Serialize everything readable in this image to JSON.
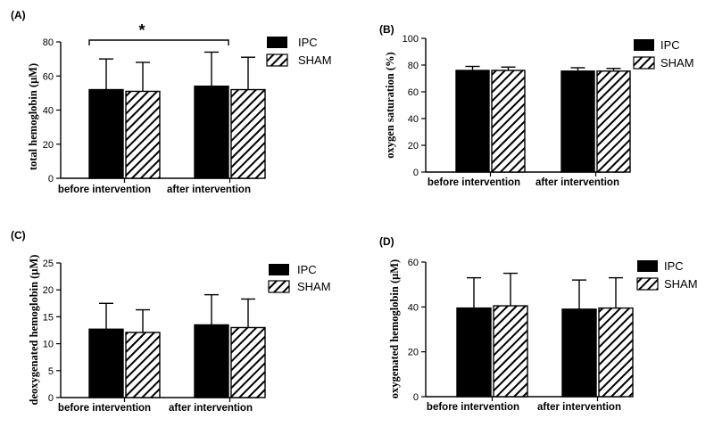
{
  "chart_data": [
    {
      "type": "bar",
      "panel_label": "(A)",
      "ylabel": "total hemoglobin (μM)",
      "ylim": [
        0,
        80
      ],
      "yticks": [
        0,
        20,
        40,
        60,
        80
      ],
      "categories": [
        "before intervention",
        "after intervention"
      ],
      "series": [
        {
          "name": "IPC",
          "values": [
            52,
            54
          ],
          "errors": [
            18,
            20
          ],
          "fill": "solid"
        },
        {
          "name": "SHAM",
          "values": [
            51,
            52
          ],
          "errors": [
            17,
            19
          ],
          "fill": "hatch"
        }
      ],
      "annotation": {
        "text": "*",
        "from_category": 0,
        "to_category": 1
      },
      "legend": "top-right"
    },
    {
      "type": "bar",
      "panel_label": "(B)",
      "ylabel": "oxygen saturation (%)",
      "ylim": [
        0,
        100
      ],
      "yticks": [
        0,
        20,
        40,
        60,
        80,
        100
      ],
      "categories": [
        "before intervention",
        "after intervention"
      ],
      "series": [
        {
          "name": "IPC",
          "values": [
            76,
            75.5
          ],
          "errors": [
            3,
            2.5
          ],
          "fill": "solid"
        },
        {
          "name": "SHAM",
          "values": [
            76,
            75.5
          ],
          "errors": [
            2.5,
            2
          ],
          "fill": "hatch"
        }
      ],
      "legend": "top-right"
    },
    {
      "type": "bar",
      "panel_label": "(C)",
      "ylabel": "deoxygenated hemoglobin (μM)",
      "ylim": [
        0,
        25
      ],
      "yticks": [
        0,
        5,
        10,
        15,
        20,
        25
      ],
      "categories": [
        "before intervention",
        "after intervention"
      ],
      "series": [
        {
          "name": "IPC",
          "values": [
            12.7,
            13.5
          ],
          "errors": [
            4.8,
            5.6
          ],
          "fill": "solid"
        },
        {
          "name": "SHAM",
          "values": [
            12.1,
            13.0
          ],
          "errors": [
            4.2,
            5.3
          ],
          "fill": "hatch"
        }
      ],
      "legend": "top-right"
    },
    {
      "type": "bar",
      "panel_label": "(D)",
      "ylabel": "oxygenated hemoglobin (μM)",
      "ylim": [
        0,
        60
      ],
      "yticks": [
        0,
        20,
        40,
        60
      ],
      "categories": [
        "before intervention",
        "after intervention"
      ],
      "series": [
        {
          "name": "IPC",
          "values": [
            39.5,
            39
          ],
          "errors": [
            13.5,
            13
          ],
          "fill": "solid"
        },
        {
          "name": "SHAM",
          "values": [
            40.5,
            39.5
          ],
          "errors": [
            14.5,
            13.5
          ],
          "fill": "hatch"
        }
      ],
      "legend": "top-right"
    }
  ]
}
